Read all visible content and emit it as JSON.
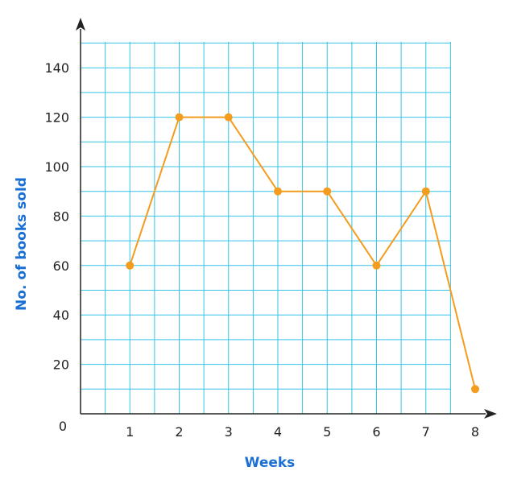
{
  "chart_data": {
    "type": "line",
    "title": "",
    "xlabel": "Weeks",
    "ylabel": "No. of books sold",
    "origin_label": "0",
    "x": [
      1,
      2,
      3,
      4,
      5,
      6,
      7,
      8
    ],
    "x_tick_labels": [
      "1",
      "2",
      "3",
      "4",
      "5",
      "6",
      "7",
      "8"
    ],
    "y_tick_values": [
      20,
      40,
      60,
      80,
      100,
      120,
      140
    ],
    "y_tick_labels": [
      "20",
      "40",
      "60",
      "80",
      "100",
      "120",
      "140"
    ],
    "series": [
      {
        "values": [
          60,
          120,
          120,
          90,
          90,
          60,
          90,
          10
        ]
      }
    ],
    "xlim": [
      0,
      8.5
    ],
    "ylim": [
      0,
      150
    ],
    "grid": true,
    "colors": {
      "grid": "#35c4e6",
      "line": "#f39c1e",
      "marker": "#f39c1e",
      "axis": "#222222",
      "axis_title": "#1a6fd4"
    }
  }
}
